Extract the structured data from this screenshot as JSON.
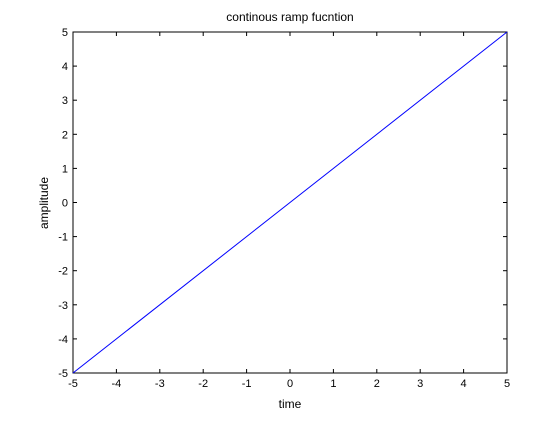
{
  "chart_data": {
    "type": "line",
    "title": "continous ramp fucntion",
    "xlabel": "time",
    "ylabel": "amplitude",
    "xlim": [
      -5,
      5
    ],
    "ylim": [
      -5,
      5
    ],
    "xticks": [
      -5,
      -4,
      -3,
      -2,
      -1,
      0,
      1,
      2,
      3,
      4,
      5
    ],
    "yticks": [
      -5,
      -4,
      -3,
      -2,
      -1,
      0,
      1,
      2,
      3,
      4,
      5
    ],
    "grid": false,
    "series": [
      {
        "x": [
          -5,
          5
        ],
        "y": [
          -5,
          5
        ],
        "color": "#0000ff"
      }
    ]
  }
}
